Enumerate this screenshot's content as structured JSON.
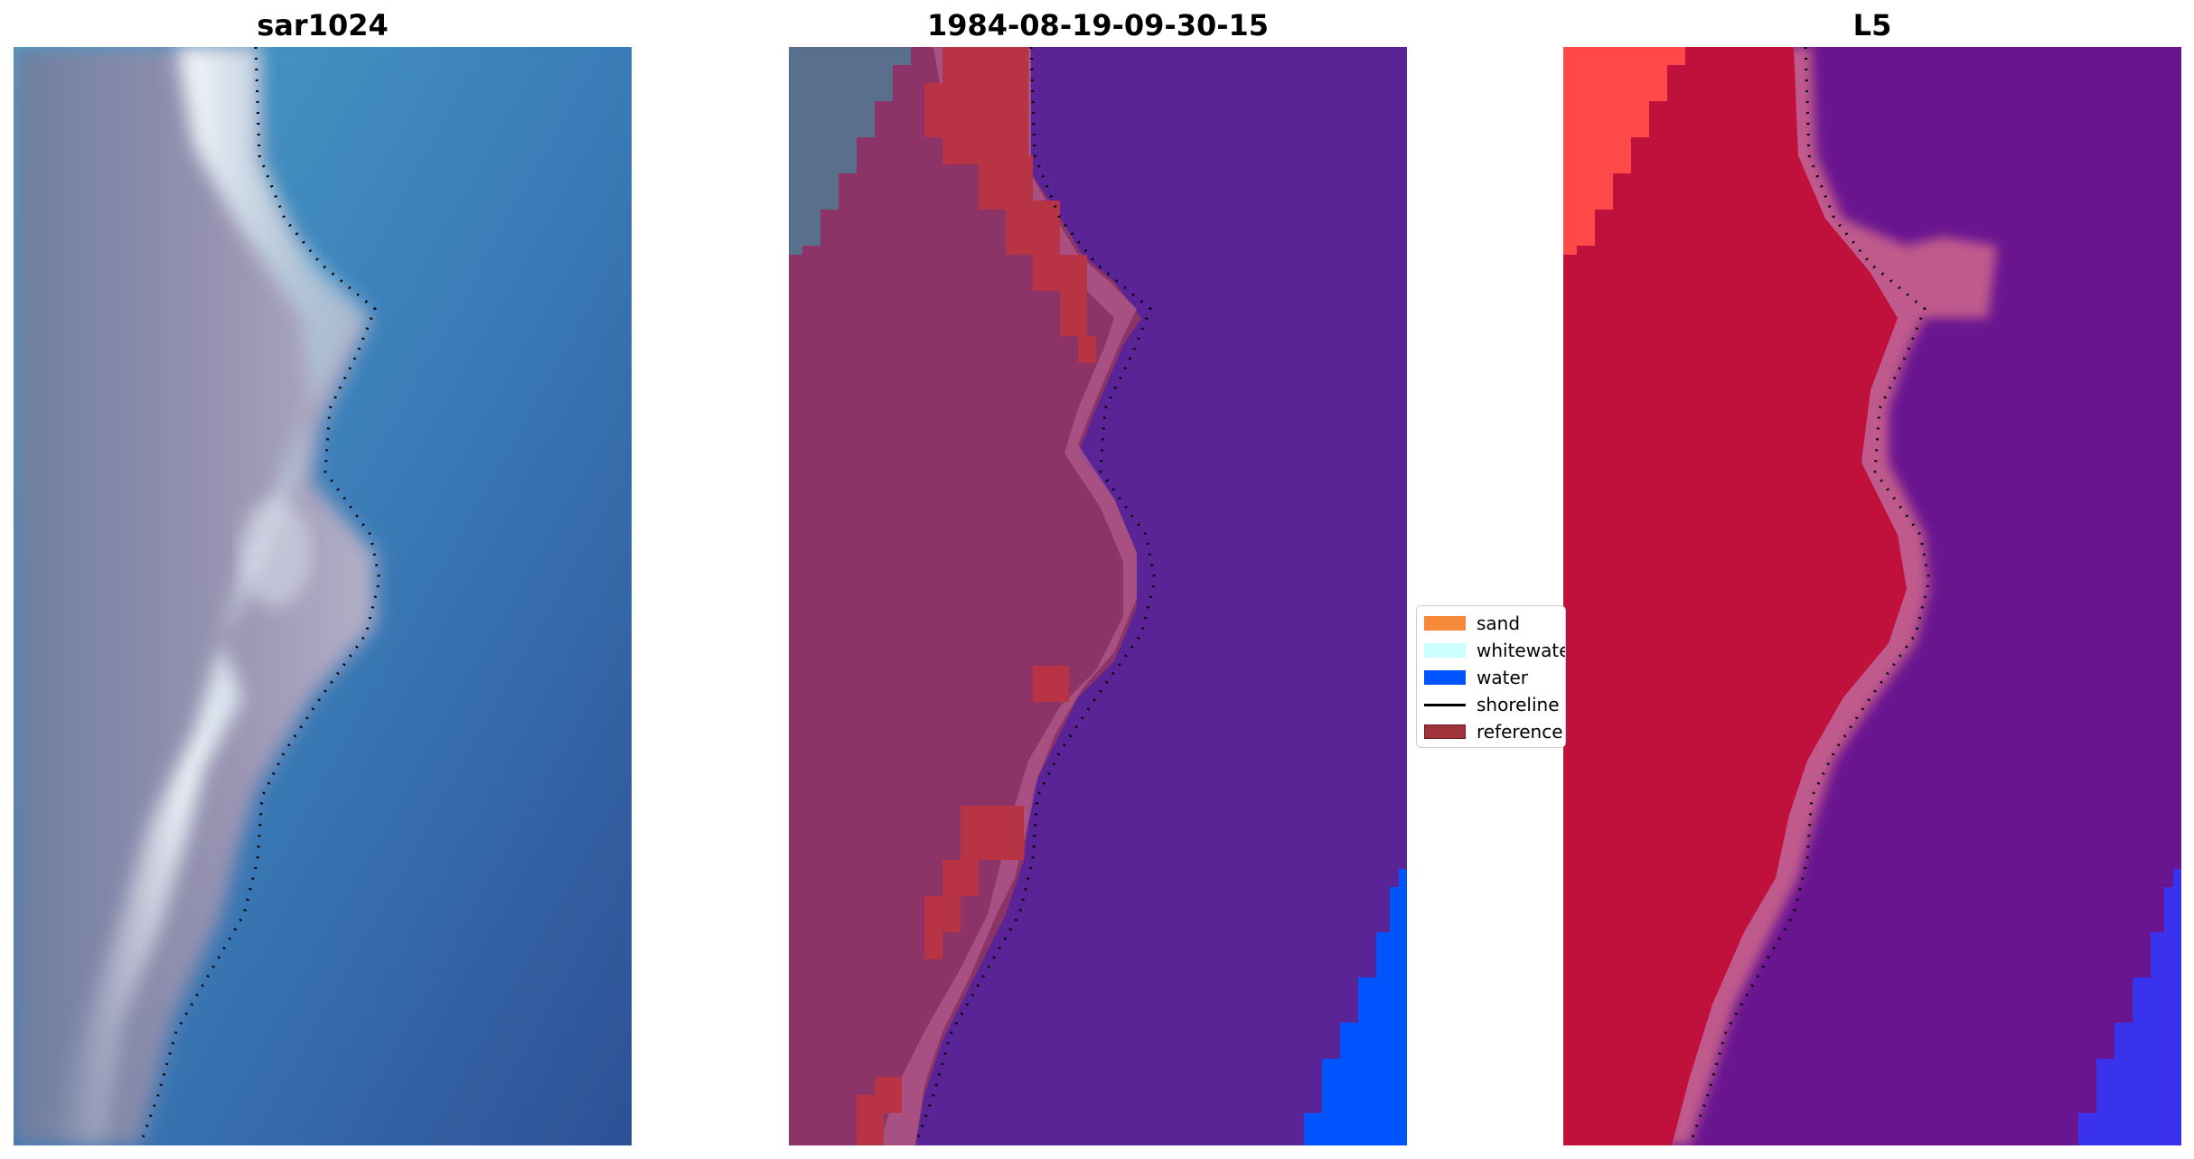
{
  "panels": [
    {
      "title": "sar1024",
      "kind": "rgb-image"
    },
    {
      "title": "1984-08-19-09-30-15",
      "kind": "classified-image"
    },
    {
      "title": "L5",
      "kind": "index-image"
    }
  ],
  "legend": {
    "items": [
      {
        "label": "sand",
        "color": "#f7893a",
        "type": "patch"
      },
      {
        "label": "whitewater",
        "color": "#ccffff",
        "type": "patch"
      },
      {
        "label": "water",
        "color": "#0055ff",
        "type": "patch"
      },
      {
        "label": "shoreline",
        "color": "#000000",
        "type": "line"
      },
      {
        "label": "reference",
        "color": "#a0323a",
        "type": "patch"
      }
    ]
  },
  "colors": {
    "sar_land": "#8b8aa8",
    "sar_sea": "#3a78b2",
    "sar_surf": "#e9f2f8",
    "class_land": "#8c3468",
    "class_sea": "#5a2396",
    "class_water": "#0055ff",
    "class_reference": "#b83444",
    "class_topleft": "#5a6f8c",
    "l5_land": "#c0103c",
    "l5_sea": "#6a1590",
    "l5_edge": "#c05a8c",
    "l5_water": "#3a33ee",
    "l5_corner": "#ff4848",
    "shoreline": "#000000"
  }
}
